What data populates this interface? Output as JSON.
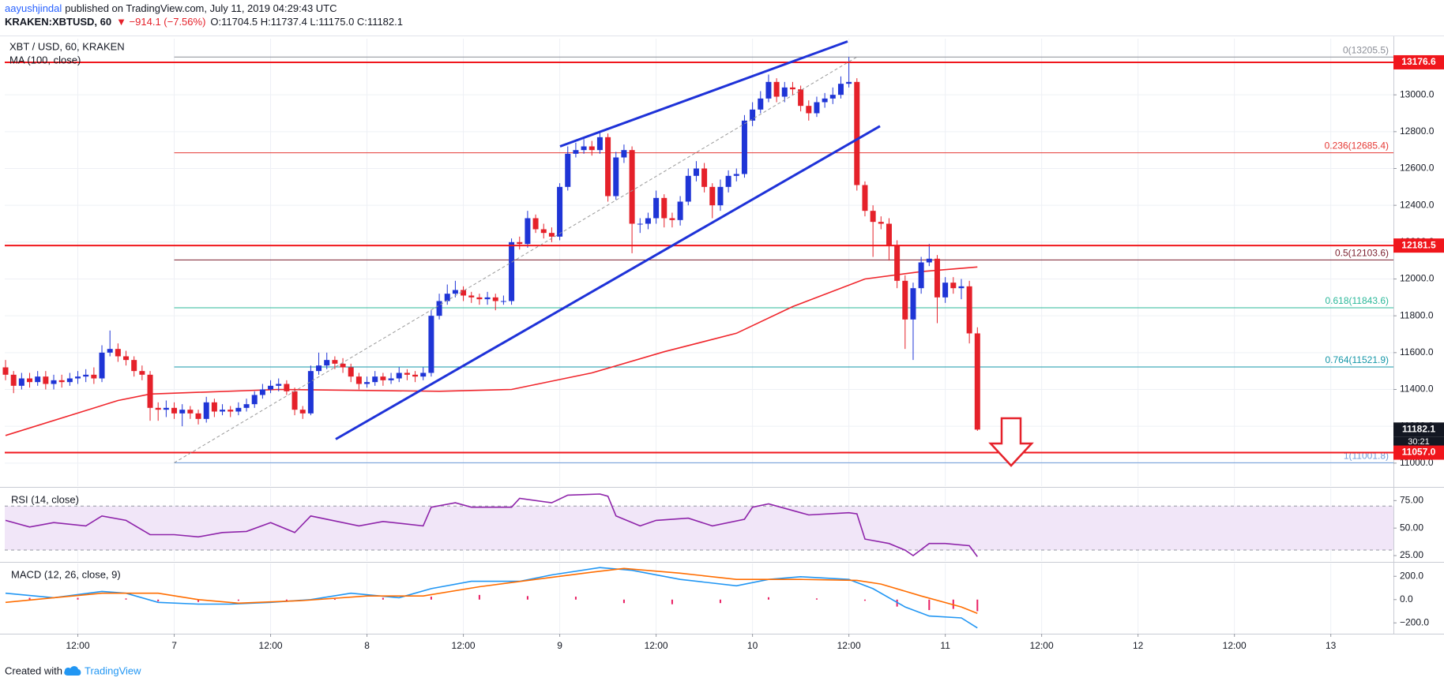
{
  "header": {
    "author": "aayushjindal",
    "published": "published on TradingView.com, July 11, 2019 04:29:43 UTC",
    "symbol": "KRAKEN:XBTUSD, 60",
    "change": "▼ −914.1 (−7.56%)",
    "ohlc": "O:11704.5 H:11737.4 L:11175.0 C:11182.1"
  },
  "chart_data": [
    {
      "type": "candlestick",
      "title": "XBT / USD, 60, KRAKEN",
      "x": [
        -21,
        -20,
        -19,
        -18,
        -17,
        -16,
        -15,
        -14,
        -13,
        -12,
        -11,
        -10,
        -9,
        -8,
        -7,
        -6,
        -5,
        -4,
        -3,
        -2,
        -1,
        0,
        1,
        2,
        3,
        4,
        5,
        6,
        7,
        8,
        9,
        10,
        11,
        12,
        13,
        14,
        15,
        16,
        17,
        18,
        19,
        20,
        21,
        22,
        23,
        24,
        25,
        26,
        27,
        28,
        29,
        30,
        31,
        32,
        33,
        34,
        35,
        36,
        37,
        38,
        39,
        40,
        41,
        42,
        43,
        44,
        45,
        46,
        47,
        48,
        49,
        50,
        51,
        52,
        53,
        54,
        55,
        56,
        57,
        58,
        59,
        60,
        61,
        62,
        63,
        64,
        65,
        66,
        67,
        68,
        69,
        70,
        71,
        72,
        73,
        74,
        75,
        76,
        77,
        78,
        79,
        80,
        81,
        82,
        83,
        84,
        85,
        86,
        87,
        88,
        89,
        90,
        91,
        92,
        93,
        94,
        95,
        96,
        97,
        98,
        99,
        100
      ],
      "open": [
        11520,
        11480,
        11420,
        11460,
        11440,
        11470,
        11430,
        11450,
        11440,
        11460,
        11470,
        11480,
        11460,
        11600,
        11620,
        11580,
        11560,
        11500,
        11480,
        11300,
        11290,
        11300,
        11270,
        11290,
        11270,
        11240,
        11330,
        11280,
        11290,
        11280,
        11300,
        11320,
        11370,
        11400,
        11420,
        11430,
        11390,
        11290,
        11270,
        11500,
        11530,
        11560,
        11540,
        11520,
        11470,
        11430,
        11440,
        11470,
        11450,
        11460,
        11490,
        11480,
        11470,
        11490,
        11800,
        11880,
        11920,
        11940,
        11910,
        11900,
        11890,
        11900,
        11880,
        11880,
        12200,
        12190,
        12330,
        12270,
        12250,
        12230,
        12500,
        12680,
        12700,
        12720,
        12700,
        12770,
        12450,
        12660,
        12700,
        12300,
        12300,
        12330,
        12440,
        12330,
        12320,
        12420,
        12560,
        12600,
        12500,
        12400,
        12500,
        12560,
        12570,
        12860,
        12920,
        12980,
        13070,
        12990,
        13040,
        13030,
        12940,
        12900,
        12960,
        12980,
        13000,
        13060,
        13070,
        12510,
        12370,
        12310,
        12300,
        12180,
        11990,
        11780,
        11950,
        12090,
        12110,
        11900,
        11980,
        11950,
        11960,
        11704.5
      ],
      "high": [
        11560,
        11500,
        11490,
        11490,
        11500,
        11500,
        11480,
        11480,
        11490,
        11500,
        11510,
        11520,
        11640,
        11720,
        11650,
        11610,
        11580,
        11530,
        11500,
        11330,
        11340,
        11330,
        11320,
        11310,
        11290,
        11360,
        11350,
        11320,
        11310,
        11330,
        11350,
        11390,
        11430,
        11450,
        11460,
        11450,
        11410,
        11310,
        11530,
        11600,
        11600,
        11580,
        11570,
        11540,
        11490,
        11470,
        11500,
        11490,
        11490,
        11520,
        11510,
        11500,
        11520,
        11830,
        11920,
        11970,
        11990,
        11960,
        11930,
        11920,
        11930,
        11920,
        11910,
        12220,
        12230,
        12370,
        12350,
        12300,
        12280,
        12520,
        12720,
        12740,
        12760,
        12750,
        12800,
        12790,
        12690,
        12730,
        12720,
        12330,
        12360,
        12480,
        12460,
        12360,
        12450,
        12600,
        12640,
        12630,
        12520,
        12540,
        12590,
        12600,
        12890,
        12960,
        13020,
        13110,
        13090,
        13070,
        13070,
        13050,
        12970,
        12990,
        13010,
        13040,
        13100,
        13205.5,
        13090,
        12530,
        12400,
        12340,
        12330,
        12210,
        12020,
        11980,
        12120,
        12190,
        12130,
        12010,
        12010,
        12000,
        11990,
        11737.4
      ],
      "low": [
        11450,
        11380,
        11400,
        11410,
        11420,
        11400,
        11400,
        11410,
        11420,
        11430,
        11440,
        11430,
        11440,
        11580,
        11550,
        11530,
        11470,
        11450,
        11230,
        11230,
        11250,
        11240,
        11200,
        11240,
        11210,
        11220,
        11250,
        11260,
        11250,
        11260,
        11280,
        11300,
        11350,
        11380,
        11390,
        11370,
        11260,
        11240,
        11260,
        11480,
        11510,
        11510,
        11490,
        11440,
        11400,
        11410,
        11420,
        11420,
        11430,
        11440,
        11450,
        11440,
        11450,
        11470,
        11780,
        11860,
        11900,
        11880,
        11870,
        11860,
        11860,
        11830,
        11860,
        11860,
        12160,
        12170,
        12250,
        12220,
        12200,
        12210,
        12480,
        12660,
        12680,
        12670,
        12680,
        12420,
        12430,
        12630,
        12140,
        12250,
        12270,
        12300,
        12280,
        12280,
        12290,
        12400,
        12530,
        12470,
        12330,
        12370,
        12470,
        12530,
        12550,
        12830,
        12900,
        12960,
        12960,
        12960,
        13000,
        12910,
        12860,
        12880,
        12930,
        12950,
        12980,
        13040,
        12480,
        12340,
        12120,
        12270,
        12100,
        11950,
        11620,
        11560,
        11920,
        12070,
        11760,
        11870,
        11920,
        11890,
        11650,
        11175.0
      ],
      "close": [
        11480,
        11420,
        11460,
        11440,
        11470,
        11430,
        11450,
        11440,
        11460,
        11470,
        11480,
        11460,
        11600,
        11620,
        11580,
        11560,
        11500,
        11480,
        11300,
        11290,
        11300,
        11270,
        11290,
        11270,
        11240,
        11330,
        11280,
        11290,
        11280,
        11300,
        11320,
        11370,
        11400,
        11420,
        11430,
        11390,
        11290,
        11270,
        11500,
        11530,
        11560,
        11540,
        11520,
        11470,
        11430,
        11440,
        11470,
        11450,
        11460,
        11490,
        11480,
        11470,
        11490,
        11800,
        11880,
        11920,
        11940,
        11910,
        11900,
        11890,
        11900,
        11880,
        11880,
        12200,
        12190,
        12330,
        12270,
        12250,
        12230,
        12500,
        12680,
        12700,
        12720,
        12700,
        12770,
        12450,
        12660,
        12700,
        12300,
        12300,
        12330,
        12440,
        12330,
        12320,
        12420,
        12560,
        12600,
        12500,
        12400,
        12500,
        12560,
        12570,
        12860,
        12920,
        12980,
        13070,
        12990,
        13040,
        13030,
        12940,
        12900,
        12960,
        12980,
        13000,
        13060,
        13070,
        12510,
        12370,
        12310,
        12300,
        12180,
        11990,
        11780,
        11950,
        12090,
        12110,
        11900,
        11980,
        11950,
        11960,
        11704.5,
        11182.1
      ],
      "up_color": "#1f35d6",
      "down_color": "#e5212a",
      "countdown": "30:21",
      "last_color": "#131722",
      "xlim": [
        -21.1,
        151.8
      ],
      "xticks": [
        {
          "value": -12,
          "label": "12:00"
        },
        {
          "value": 0,
          "label": "7"
        },
        {
          "value": 12,
          "label": "12:00"
        },
        {
          "value": 24,
          "label": "8"
        },
        {
          "value": 36,
          "label": "12:00"
        },
        {
          "value": 48,
          "label": "9"
        },
        {
          "value": 60,
          "label": "12:00"
        },
        {
          "value": 72,
          "label": "10"
        },
        {
          "value": 84,
          "label": "12:00"
        },
        {
          "value": 96,
          "label": "11"
        },
        {
          "value": 108,
          "label": "12:00"
        },
        {
          "value": 120,
          "label": "12"
        },
        {
          "value": 132,
          "label": "12:00"
        },
        {
          "value": 144,
          "label": "13"
        }
      ],
      "ylim": [
        10875,
        13305
      ],
      "yticks": [
        {
          "value": 11000,
          "label": "11000.0"
        },
        {
          "value": 11200,
          "label": "11200.0"
        },
        {
          "value": 11400,
          "label": "11400.0"
        },
        {
          "value": 11600,
          "label": "11600.0"
        },
        {
          "value": 11800,
          "label": "11800.0"
        },
        {
          "value": 12000,
          "label": "12000.0"
        },
        {
          "value": 12200,
          "label": "12200.0"
        },
        {
          "value": 12400,
          "label": "12400.0"
        },
        {
          "value": 12600,
          "label": "12600.0"
        },
        {
          "value": 12800,
          "label": "12800.0"
        },
        {
          "value": 13000,
          "label": "13000.0"
        }
      ],
      "grid": true,
      "overlays": [
        {
          "name": "MA (100, close)",
          "color": "#f0262c",
          "x": [
            -21,
            -7,
            -3,
            13,
            33,
            42,
            52,
            61,
            70,
            77,
            86,
            93,
            100
          ],
          "values": [
            11150,
            11340,
            11375,
            11400,
            11390,
            11400,
            11490,
            11605,
            11705,
            11850,
            12000,
            12040,
            12065
          ]
        }
      ],
      "levels": [
        13176.6,
        12181.5,
        {
          "value": 11057,
          "label": "11057.0"
        }
      ],
      "level_color": "#f0161c",
      "fib_from_x": 0,
      "fib_levels": [
        {
          "value": 13205.5,
          "label": "0(13205.5)",
          "color": "#8a8d96"
        },
        {
          "value": 12685.4,
          "label": "0.236(12685.4)",
          "color": "#e53935"
        },
        {
          "value": 12103.6,
          "label": "0.5(12103.6)",
          "color": "#7b1f2e"
        },
        {
          "value": 11843.6,
          "label": "0.618(11843.6)",
          "color": "#2bb89a"
        },
        {
          "value": 11521.9,
          "label": "0.764(11521.9)",
          "color": "#1597a8"
        },
        {
          "value": 11001.8,
          "label": "1(11001.8)",
          "color": "#6e9bd8"
        }
      ]
    },
    {
      "type": "line",
      "title": "RSI (14, close)",
      "ylim": [
        20,
        86
      ],
      "yticks": [
        {
          "value": 25,
          "label": "25.00"
        },
        {
          "value": 50,
          "label": "50.00"
        },
        {
          "value": 75,
          "label": "75.00"
        }
      ],
      "band": [
        30,
        70
      ],
      "band_color": "#f1e6f8",
      "grid": false,
      "series": [
        {
          "color": "#8e24aa",
          "x": [
            -21,
            -18,
            -15,
            -11,
            -9,
            -6,
            -3,
            0,
            3,
            6,
            9,
            12,
            15,
            17,
            23,
            26,
            31,
            32,
            35,
            37,
            42,
            43,
            47,
            49,
            53,
            54,
            55,
            58,
            60,
            64,
            67,
            71,
            72,
            74,
            79,
            84,
            85,
            86,
            89,
            91,
            92,
            94,
            96,
            99,
            100
          ],
          "values": [
            57,
            51,
            55,
            52,
            61,
            57,
            44,
            44,
            42,
            46,
            47,
            55,
            46,
            61,
            52,
            56,
            52,
            69,
            73,
            69,
            69,
            77,
            73,
            80,
            81,
            79,
            61,
            52,
            57,
            59,
            52,
            58,
            69,
            72,
            62,
            64,
            63,
            40,
            36,
            30,
            25,
            36,
            36,
            34,
            24
          ]
        }
      ]
    },
    {
      "type": "macd",
      "title": "MACD (12, 26, close, 9)",
      "ylim": [
        -286,
        310
      ],
      "yticks": [
        {
          "value": -200,
          "label": "−200.0"
        },
        {
          "value": 0,
          "label": "0.0"
        },
        {
          "value": 200,
          "label": "200.0"
        }
      ],
      "grid": false,
      "histogram": {
        "color": "#e91e63",
        "x": [
          -18,
          -12,
          -6,
          -2,
          3,
          8,
          14,
          20,
          26,
          32,
          38,
          44,
          50,
          56,
          62,
          68,
          74,
          80,
          86,
          90,
          94,
          97,
          100
        ],
        "values": [
          15,
          15,
          10,
          -15,
          -20,
          -10,
          -10,
          5,
          15,
          25,
          40,
          30,
          25,
          -30,
          -40,
          -30,
          20,
          10,
          -10,
          -60,
          -90,
          -80,
          -100
        ]
      },
      "series": [
        {
          "color": "#2196f3",
          "x": [
            -21,
            -15,
            -9,
            -6,
            -2,
            3,
            7,
            12,
            17,
            22,
            28,
            32,
            37,
            43,
            47,
            53,
            57,
            63,
            70,
            74,
            78,
            84,
            87,
            91,
            94,
            98,
            100
          ],
          "values": [
            55,
            16,
            70,
            55,
            -24,
            -39,
            -39,
            -24,
            0,
            55,
            16,
            94,
            157,
            157,
            212,
            275,
            251,
            173,
            118,
            173,
            196,
            173,
            94,
            -63,
            -141,
            -157,
            -243
          ]
        },
        {
          "color": "#ff6d00",
          "x": [
            -21,
            -15,
            -9,
            -2,
            3,
            8,
            16,
            24,
            31,
            38,
            45,
            52,
            56,
            63,
            70,
            78,
            85,
            88,
            93,
            98,
            100
          ],
          "values": [
            -24,
            16,
            55,
            55,
            0,
            -31,
            -8,
            31,
            31,
            110,
            173,
            235,
            267,
            227,
            173,
            173,
            165,
            133,
            31,
            -63,
            -118
          ]
        }
      ]
    }
  ],
  "footer": {
    "created": "Created with",
    "brand": "TradingView"
  }
}
